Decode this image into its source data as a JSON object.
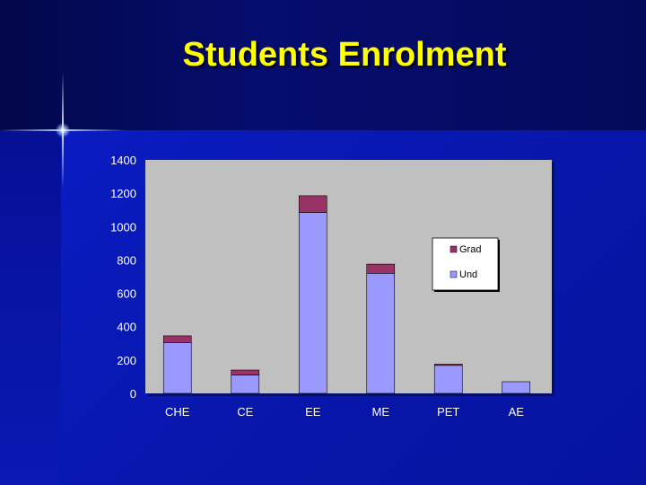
{
  "title": "Students Enrolment",
  "chart_data": {
    "type": "bar",
    "stacked": true,
    "categories": [
      "CHE",
      "CE",
      "EE",
      "ME",
      "PET",
      "AE"
    ],
    "series": [
      {
        "name": "Und",
        "color": "#9999ff",
        "values": [
          305,
          110,
          1085,
          720,
          168,
          70
        ]
      },
      {
        "name": "Grad",
        "color": "#993366",
        "values": [
          40,
          30,
          100,
          55,
          7,
          0
        ]
      }
    ],
    "yticks": [
      "0",
      "200",
      "400",
      "600",
      "800",
      "1000",
      "1200",
      "1400"
    ],
    "ylim": [
      0,
      1400
    ],
    "grid": false,
    "legend": "right",
    "plot_background": "#c0c0c0"
  }
}
